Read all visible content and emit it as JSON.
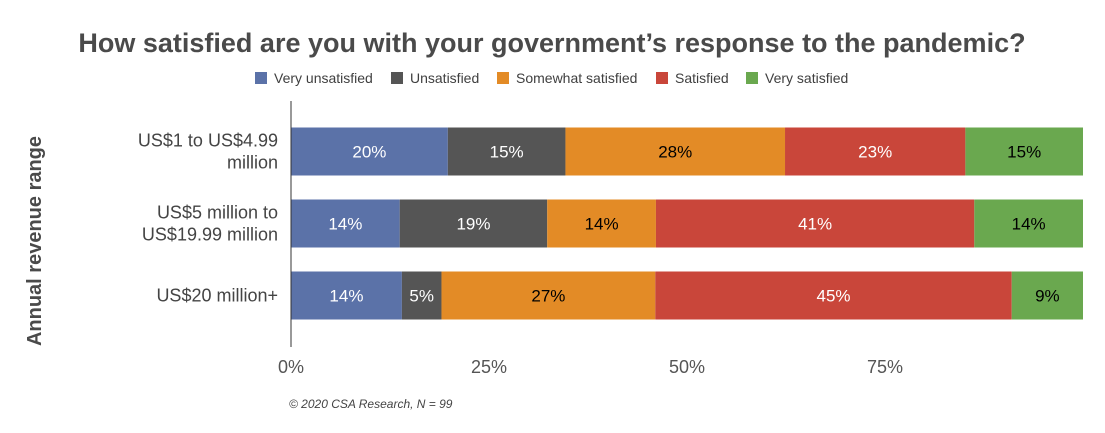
{
  "chart_data": {
    "type": "bar",
    "orientation": "horizontal",
    "stacked": true,
    "title": "How satisfied are you with your government’s response to the pandemic?",
    "xlabel": "",
    "ylabel": "Annual revenue range",
    "xlim": [
      0,
      100
    ],
    "xticks": [
      0,
      25,
      50,
      75
    ],
    "xtick_labels": [
      "0%",
      "25%",
      "50%",
      "75%"
    ],
    "grid": false,
    "legend_position": "top",
    "categories": [
      [
        "US$1 to US$4.99",
        "million"
      ],
      [
        "US$5 million to",
        "US$19.99 million"
      ],
      [
        "US$20 million+"
      ]
    ],
    "series": [
      {
        "name": "Very unsatisfied",
        "color": "#5b72a8",
        "label_color": "#ffffff",
        "values": [
          20,
          14,
          14
        ]
      },
      {
        "name": "Unsatisfied",
        "color": "#555555",
        "label_color": "#ffffff",
        "values": [
          15,
          19,
          5
        ]
      },
      {
        "name": "Somewhat satisfied",
        "color": "#e38b26",
        "label_color": "#000000",
        "values": [
          28,
          14,
          27
        ]
      },
      {
        "name": "Satisfied",
        "color": "#c9463a",
        "label_color": "#ffffff",
        "values": [
          23,
          41,
          45
        ]
      },
      {
        "name": "Very satisfied",
        "color": "#6aa84f",
        "label_color": "#000000",
        "values": [
          15,
          14,
          9
        ]
      }
    ],
    "value_suffix": "%",
    "footnote": "© 2020 CSA Research, N = 99"
  }
}
